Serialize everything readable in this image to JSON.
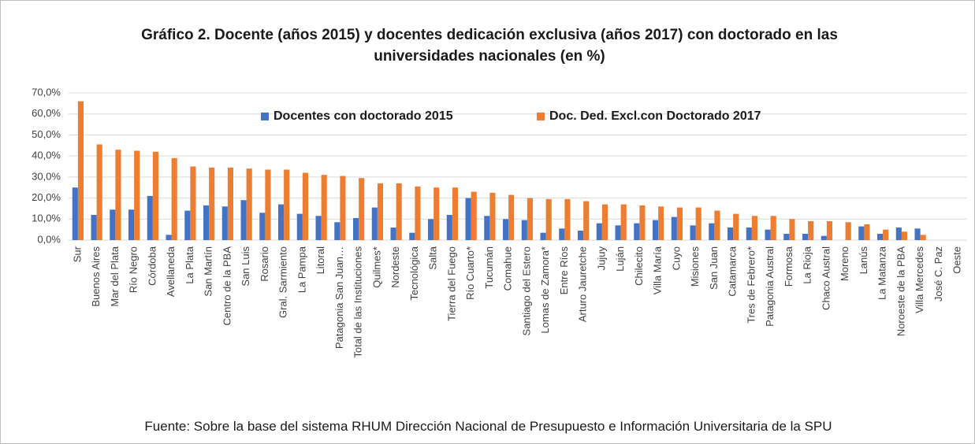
{
  "chart_data": {
    "type": "bar",
    "title": "Gráfico 2. Docente (años 2015) y docentes dedicación  exclusiva (años 2017) con doctorado en las universidades nacionales  (en %)",
    "source": "Fuente: Sobre la base del sistema RHUM Dirección Nacional de Presupuesto e Información Universitaria de la SPU",
    "categories": [
      "Sur",
      "Buenos Aires",
      "Mar del Plata",
      "Río Negro",
      "Córdoba",
      "Avellaneda",
      "La Plata",
      "San Martín",
      "Centro de la PBA",
      "San Luis",
      "Rosario",
      "Gral. Sarmiento",
      "La Pampa",
      "Litoral",
      "Patagonia San Juan…",
      "Total de las Instituciones",
      "Quilmes*",
      "Nordeste",
      "Tecnológica",
      "Salta",
      "Tierra del Fuego",
      "Río Cuarto*",
      "Tucumán",
      "Comahue",
      "Santiago del Estero",
      "Lomas de Zamora*",
      "Entre Ríos",
      "Arturo Jauretche",
      "Jujuy",
      "Luján",
      "Chilecito",
      "Villa María",
      "Cuyo",
      "Misiones",
      "San Juan",
      "Catamarca",
      "Tres de Febrero*",
      "Patagonia Austral",
      "Formosa",
      "La Rioja",
      "Chaco Austral",
      "Moreno",
      "Lanús",
      "La Matanza",
      "Noroeste de la PBA",
      "Villa Mercedes",
      "José C. Paz",
      "Oeste"
    ],
    "series": [
      {
        "name": "Docentes con doctorado 2015",
        "color": "#4472c4",
        "values": [
          25,
          12,
          14.5,
          14.5,
          21,
          2.5,
          14,
          16.5,
          16,
          19,
          13,
          17,
          12.5,
          11.5,
          8.5,
          10.5,
          15.5,
          6,
          3.5,
          10,
          12,
          20,
          11.5,
          10,
          9.5,
          3.5,
          5.5,
          4.5,
          8,
          7,
          8,
          9.5,
          11,
          7,
          8,
          6,
          6,
          5,
          3,
          3,
          2,
          null,
          6.5,
          3,
          6,
          5.5,
          null,
          null
        ]
      },
      {
        "name": "Doc. Ded. Excl.con Doctorado 2017",
        "color": "#ed7d31",
        "values": [
          66,
          45.5,
          43,
          42.5,
          42,
          39,
          35,
          34.5,
          34.5,
          34,
          33.5,
          33.5,
          32,
          31,
          30.5,
          29.5,
          27,
          27,
          25.5,
          25,
          25,
          23,
          22.5,
          21.5,
          20,
          19.5,
          19.5,
          18.5,
          17,
          17,
          16.5,
          16,
          15.5,
          15.5,
          14,
          12.5,
          11.5,
          11.5,
          10,
          9,
          9,
          8.5,
          7.5,
          5,
          4,
          2.5,
          null,
          null
        ]
      }
    ],
    "ylim": [
      0,
      70
    ],
    "yticks": [
      {
        "value": 0,
        "label": "0,0%"
      },
      {
        "value": 10,
        "label": "10,0%"
      },
      {
        "value": 20,
        "label": "20,0%"
      },
      {
        "value": 30,
        "label": "30,0%"
      },
      {
        "value": 40,
        "label": "40,0%"
      },
      {
        "value": 50,
        "label": "50,0%"
      },
      {
        "value": 60,
        "label": "60,0%"
      },
      {
        "value": 70,
        "label": "70,0%"
      }
    ],
    "grid": true
  }
}
